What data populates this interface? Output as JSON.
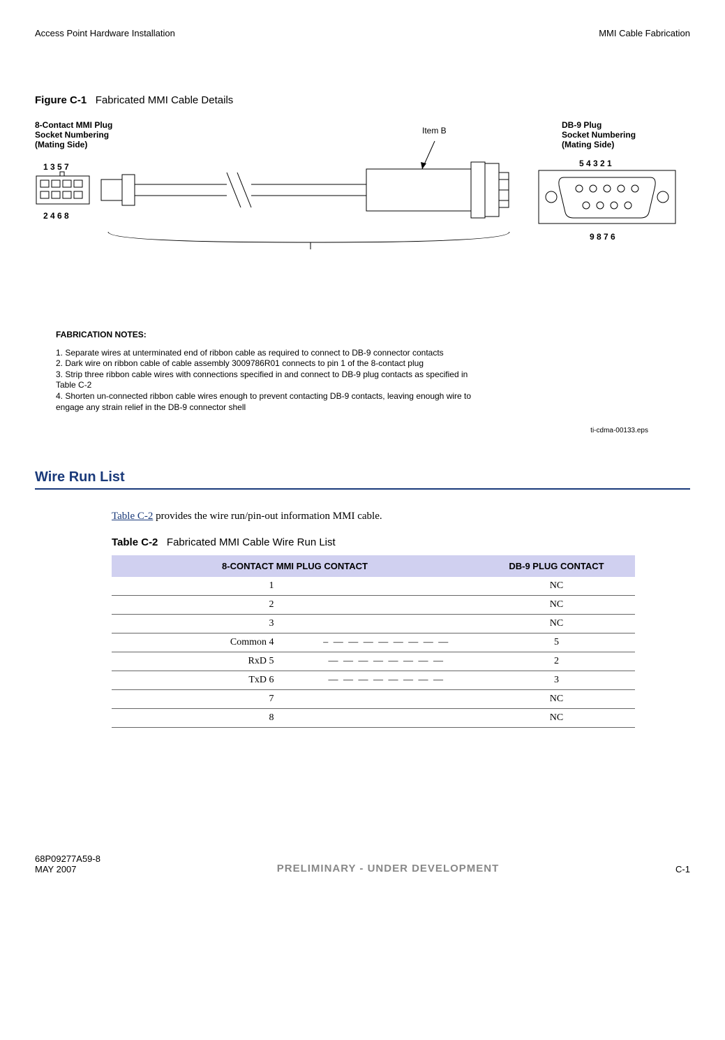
{
  "header": {
    "left": "Access Point Hardware Installation",
    "right": "MMI Cable Fabrication"
  },
  "figure": {
    "label": "Figure C-1",
    "title": "Fabricated MMI Cable Details",
    "left_connector": {
      "title_l1": "8-Contact  MMI Plug",
      "title_l2": "Socket Numbering",
      "title_l3": "(Mating Side)",
      "top_pins": "1  3  5  7",
      "bot_pins": "2  4  6  8"
    },
    "item_b_label": "Item B",
    "right_connector": {
      "title_l1": "DB-9 Plug",
      "title_l2": "Socket Numbering",
      "title_l3": "(Mating Side)",
      "top_pins": "5   4   3   2   1",
      "bot_pins": "9   8   7   6"
    },
    "fab_notes_title": "FABRICATION NOTES:",
    "fab_notes": [
      "1. Separate wires at unterminated end of ribbon cable as required to connect to DB-9 connector contacts",
      "2. Dark wire on ribbon cable of cable assembly 3009786R01 connects to pin 1 of the 8-contact plug",
      "3. Strip three ribbon cable wires with connections specified in  and connect to DB-9 plug contacts as specified in Table C-2",
      "4. Shorten un-connected ribbon cable wires enough to prevent contacting DB-9 contacts, leaving enough wire to engage any strain relief in the DB-9 connector shell"
    ],
    "eps": "ti-cdma-00133.eps"
  },
  "section": {
    "title": "Wire Run List",
    "body_prefix": "",
    "body_link": "Table C-2",
    "body_suffix": " provides the wire run/pin-out information MMI cable."
  },
  "table": {
    "label": "Table C-2",
    "title": "Fabricated MMI Cable Wire Run List",
    "headers": {
      "left": "8-CONTACT MMI PLUG CONTACT",
      "right": "DB-9 PLUG CONTACT"
    },
    "rows": [
      {
        "left": "1",
        "mid": "",
        "right": "NC"
      },
      {
        "left": "2",
        "mid": "",
        "right": "NC"
      },
      {
        "left": "3",
        "mid": "",
        "right": "NC"
      },
      {
        "left": "Common 4",
        "mid": "– — — — — — — — —",
        "right": "5"
      },
      {
        "left": "RxD 5",
        "mid": "— — — — — — — —",
        "right": "2"
      },
      {
        "left": "TxD 6",
        "mid": "— — — — — — — —",
        "right": "3"
      },
      {
        "left": "7",
        "mid": "",
        "right": "NC"
      },
      {
        "left": "8",
        "mid": "",
        "right": "NC"
      }
    ]
  },
  "footer": {
    "left_l1": "68P09277A59-8",
    "left_l2": "MAY 2007",
    "center": "PRELIMINARY - UNDER DEVELOPMENT",
    "right": "C-1"
  }
}
